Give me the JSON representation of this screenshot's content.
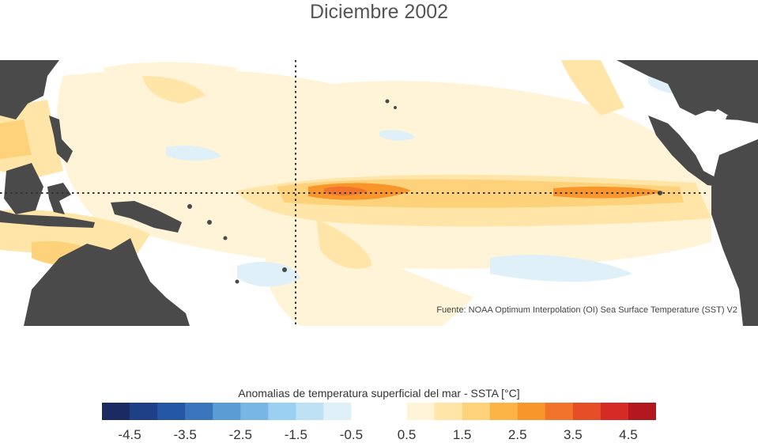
{
  "title": "Diciembre 2002",
  "source": "Fuente: NOAA Optimum Interpolation (OI) Sea Surface Temperature (SST) V2",
  "colorbar": {
    "label": "Anomalias de temperatura superficial del mar - SSTA  [°C]",
    "ticks": [
      "-4.5",
      "-3.5",
      "-2.5",
      "-1.5",
      "-0.5",
      "0.5",
      "1.5",
      "2.5",
      "3.5",
      "4.5"
    ],
    "bins": [
      {
        "range": [
          -5.0,
          -4.5
        ],
        "color": "#1a2b63"
      },
      {
        "range": [
          -4.5,
          -4.0
        ],
        "color": "#1f3f86"
      },
      {
        "range": [
          -4.0,
          -3.5
        ],
        "color": "#2457a6"
      },
      {
        "range": [
          -3.5,
          -3.0
        ],
        "color": "#3a75bd"
      },
      {
        "range": [
          -3.0,
          -2.5
        ],
        "color": "#5a9dd4"
      },
      {
        "range": [
          -2.5,
          -2.0
        ],
        "color": "#78b6e6"
      },
      {
        "range": [
          -2.0,
          -1.5
        ],
        "color": "#9bd0f2"
      },
      {
        "range": [
          -1.5,
          -1.0
        ],
        "color": "#bfe1f5"
      },
      {
        "range": [
          -1.0,
          -0.5
        ],
        "color": "#dff0f9"
      },
      {
        "range": [
          -0.5,
          0.5
        ],
        "color": "#ffffff"
      },
      {
        "range": [
          0.5,
          1.0
        ],
        "color": "#fff4d8"
      },
      {
        "range": [
          1.0,
          1.5
        ],
        "color": "#ffe6a8"
      },
      {
        "range": [
          1.5,
          2.0
        ],
        "color": "#fdd27a"
      },
      {
        "range": [
          2.0,
          2.5
        ],
        "color": "#fcb447"
      },
      {
        "range": [
          2.5,
          3.0
        ],
        "color": "#f8952b"
      },
      {
        "range": [
          3.0,
          3.5
        ],
        "color": "#f2742a"
      },
      {
        "range": [
          3.5,
          4.0
        ],
        "color": "#e64e28"
      },
      {
        "range": [
          4.0,
          4.5
        ],
        "color": "#d52a26"
      },
      {
        "range": [
          4.5,
          5.0
        ],
        "color": "#b3181f"
      }
    ]
  },
  "colors": {
    "land": "#4a4a4a",
    "warm_light": "#fff4d8",
    "warm_mid": "#ffe6a8",
    "warm_strong": "#fdd27a",
    "warm_orange": "#f8952b",
    "warm_hot": "#f2742a",
    "cool_light": "#dff0f9"
  }
}
